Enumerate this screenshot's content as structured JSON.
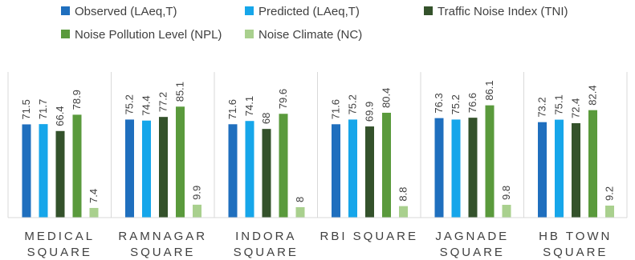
{
  "chart_data": {
    "type": "bar",
    "categories": [
      [
        "MEDICAL",
        "SQUARE"
      ],
      [
        "RAMNAGAR",
        "SQUARE"
      ],
      [
        "INDORA",
        "SQUARE"
      ],
      [
        "RBI SQUARE"
      ],
      [
        "JAGNADE",
        "SQUARE"
      ],
      [
        "HB TOWN",
        "SQUARE"
      ]
    ],
    "series": [
      {
        "name": "Observed (LAeq,T)",
        "color": "#1f6fbe",
        "values": [
          71.5,
          75.2,
          71.6,
          71.6,
          76.3,
          73.2
        ]
      },
      {
        "name": "Predicted (LAeq,T)",
        "color": "#16a6ea",
        "values": [
          71.7,
          74.4,
          74.1,
          75.2,
          75.2,
          75.1
        ]
      },
      {
        "name": "Traffic Noise Index (TNI)",
        "color": "#34522b",
        "values": [
          66.4,
          77.2,
          68,
          69.9,
          76.6,
          72.4
        ]
      },
      {
        "name": "Noise Pollution Level (NPL)",
        "color": "#5a9a3c",
        "values": [
          78.9,
          85.1,
          79.6,
          80.4,
          86.1,
          82.4
        ]
      },
      {
        "name": "Noise Climate (NC)",
        "color": "#a9d08e",
        "values": [
          7.4,
          9.9,
          8,
          8.8,
          9.8,
          9.2
        ]
      }
    ],
    "data_labels": [
      [
        "71.5",
        "75.2",
        "71.6",
        "71.6",
        "76.3",
        "73.2"
      ],
      [
        "71.7",
        "74.4",
        "74.1",
        "75.2",
        "75.2",
        "75.1"
      ],
      [
        "66.4",
        "77.2",
        "68",
        "69.9",
        "76.6",
        "72.4"
      ],
      [
        "78.9",
        "85.1",
        "79.6",
        "80.4",
        "86.1",
        "82.4"
      ],
      [
        "7.4",
        "9.9",
        "8",
        "8.8",
        "9.8",
        "9.2"
      ]
    ],
    "ylim": [
      0,
      100
    ],
    "grid": false,
    "legend_position": "top",
    "title": "",
    "xlabel": "",
    "ylabel": ""
  }
}
